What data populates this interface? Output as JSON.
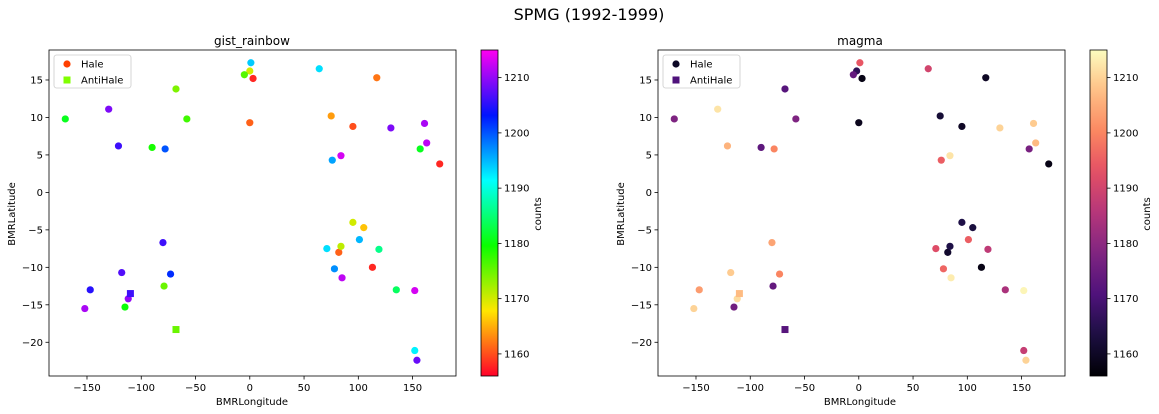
{
  "suptitle": "SPMG (1992-1999)",
  "chart_data": [
    {
      "type": "scatter",
      "title": "gist_rainbow",
      "colormap": "gist_rainbow",
      "xlabel": "BMRLongitude",
      "ylabel": "BMRLatitude",
      "xlim": [
        -185,
        190
      ],
      "ylim": [
        -24.5,
        19
      ],
      "xticks": [
        -150,
        -100,
        -50,
        0,
        50,
        100,
        150
      ],
      "yticks": [
        -20,
        -15,
        -10,
        -5,
        0,
        5,
        10,
        15
      ],
      "colorbar": {
        "label": "counts",
        "min": 1156,
        "max": 1215,
        "ticks": [
          1160,
          1170,
          1180,
          1190,
          1200,
          1210
        ]
      },
      "legend": {
        "position": "top-left",
        "entries": [
          {
            "label": "Hale",
            "marker": "circle",
            "color": "#ff4000"
          },
          {
            "label": "AntiHale",
            "marker": "square",
            "color": "#80ff00"
          }
        ]
      },
      "series": [
        {
          "name": "Hale",
          "marker": "circle",
          "points": [
            {
              "x": 175,
              "y": 3.8,
              "c": 1158
            },
            {
              "x": 3,
              "y": 15.2,
              "c": 1158
            },
            {
              "x": 113,
              "y": -10,
              "c": 1158
            },
            {
              "x": 0,
              "y": 9.3,
              "c": 1161
            },
            {
              "x": 95,
              "y": 8.8,
              "c": 1160
            },
            {
              "x": 117,
              "y": 15.3,
              "c": 1162
            },
            {
              "x": 75,
              "y": 10.2,
              "c": 1164
            },
            {
              "x": 82,
              "y": -8,
              "c": 1161
            },
            {
              "x": 105,
              "y": -4.7,
              "c": 1166
            },
            {
              "x": 95,
              "y": -4,
              "c": 1170
            },
            {
              "x": 84,
              "y": -7.2,
              "c": 1171
            },
            {
              "x": 0,
              "y": 16.2,
              "c": 1170
            },
            {
              "x": -5,
              "y": 15.7,
              "c": 1176
            },
            {
              "x": -68,
              "y": 13.8,
              "c": 1174
            },
            {
              "x": -58,
              "y": 9.8,
              "c": 1177
            },
            {
              "x": -90,
              "y": 6,
              "c": 1179
            },
            {
              "x": -170,
              "y": 9.8,
              "c": 1181
            },
            {
              "x": -79,
              "y": -12.5,
              "c": 1175
            },
            {
              "x": -115,
              "y": -15.3,
              "c": 1180
            },
            {
              "x": 157,
              "y": 5.8,
              "c": 1181
            },
            {
              "x": 135,
              "y": -13,
              "c": 1184
            },
            {
              "x": 119,
              "y": -7.6,
              "c": 1186
            },
            {
              "x": 152,
              "y": -21.1,
              "c": 1192
            },
            {
              "x": 64,
              "y": 16.5,
              "c": 1193
            },
            {
              "x": 71,
              "y": -7.5,
              "c": 1193
            },
            {
              "x": 1,
              "y": 17.3,
              "c": 1194
            },
            {
              "x": 101,
              "y": -6.3,
              "c": 1195
            },
            {
              "x": 76,
              "y": 4.3,
              "c": 1196
            },
            {
              "x": 78,
              "y": -10.2,
              "c": 1197
            },
            {
              "x": -78,
              "y": 5.8,
              "c": 1200
            },
            {
              "x": -73,
              "y": -10.9,
              "c": 1202
            },
            {
              "x": -147,
              "y": -13,
              "c": 1205
            },
            {
              "x": -80,
              "y": -6.7,
              "c": 1206
            },
            {
              "x": -121,
              "y": 6.2,
              "c": 1206
            },
            {
              "x": -118,
              "y": -10.7,
              "c": 1207
            },
            {
              "x": 154,
              "y": -22.4,
              "c": 1208
            },
            {
              "x": -130,
              "y": 11.1,
              "c": 1209
            },
            {
              "x": 130,
              "y": 8.6,
              "c": 1209
            },
            {
              "x": -112,
              "y": -14.2,
              "c": 1210
            },
            {
              "x": -152,
              "y": -15.5,
              "c": 1211
            },
            {
              "x": 161,
              "y": 9.2,
              "c": 1211
            },
            {
              "x": 163,
              "y": 6.6,
              "c": 1212
            },
            {
              "x": 85,
              "y": -11.4,
              "c": 1212
            },
            {
              "x": 152,
              "y": -13.1,
              "c": 1213
            },
            {
              "x": 84,
              "y": 4.9,
              "c": 1213
            }
          ]
        },
        {
          "name": "AntiHale",
          "marker": "square",
          "points": [
            {
              "x": -68,
              "y": -18.3,
              "c": 1175
            },
            {
              "x": -110,
              "y": -13.5,
              "c": 1206
            }
          ]
        }
      ]
    },
    {
      "type": "scatter",
      "title": "magma",
      "colormap": "magma",
      "xlabel": "BMRLongitude",
      "ylabel": "BMRLatitude",
      "xlim": [
        -185,
        190
      ],
      "ylim": [
        -24.5,
        19
      ],
      "xticks": [
        -150,
        -100,
        -50,
        0,
        50,
        100,
        150
      ],
      "yticks": [
        -20,
        -15,
        -10,
        -5,
        0,
        5,
        10,
        15
      ],
      "colorbar": {
        "label": "counts",
        "min": 1156,
        "max": 1215,
        "ticks": [
          1160,
          1170,
          1180,
          1190,
          1200,
          1210
        ]
      },
      "legend": {
        "position": "top-left",
        "entries": [
          {
            "label": "Hale",
            "marker": "circle",
            "color": "#0c0826"
          },
          {
            "label": "AntiHale",
            "marker": "square",
            "color": "#4f127b"
          }
        ]
      },
      "series": [
        {
          "name": "Hale",
          "marker": "circle",
          "points": [
            {
              "x": 175,
              "y": 3.8,
              "c": 1158
            },
            {
              "x": 3,
              "y": 15.2,
              "c": 1158
            },
            {
              "x": 113,
              "y": -10,
              "c": 1158
            },
            {
              "x": 0,
              "y": 9.3,
              "c": 1159
            },
            {
              "x": 95,
              "y": 8.8,
              "c": 1160
            },
            {
              "x": 117,
              "y": 15.3,
              "c": 1160
            },
            {
              "x": 75,
              "y": 10.2,
              "c": 1162
            },
            {
              "x": 82,
              "y": -8,
              "c": 1161
            },
            {
              "x": 105,
              "y": -4.7,
              "c": 1163
            },
            {
              "x": 95,
              "y": -4,
              "c": 1164
            },
            {
              "x": 84,
              "y": -7.2,
              "c": 1164
            },
            {
              "x": -2,
              "y": 16.2,
              "c": 1166
            },
            {
              "x": -5,
              "y": 15.7,
              "c": 1174
            },
            {
              "x": -68,
              "y": 13.8,
              "c": 1172
            },
            {
              "x": -58,
              "y": 9.8,
              "c": 1178
            },
            {
              "x": -90,
              "y": 6,
              "c": 1173
            },
            {
              "x": -170,
              "y": 9.8,
              "c": 1178
            },
            {
              "x": -79,
              "y": -12.5,
              "c": 1174
            },
            {
              "x": -115,
              "y": -15.3,
              "c": 1176
            },
            {
              "x": 157,
              "y": 5.8,
              "c": 1177
            },
            {
              "x": 135,
              "y": -13,
              "c": 1184
            },
            {
              "x": 119,
              "y": -7.6,
              "c": 1187
            },
            {
              "x": 152,
              "y": -21.1,
              "c": 1188
            },
            {
              "x": 64,
              "y": 16.5,
              "c": 1190
            },
            {
              "x": 71,
              "y": -7.5,
              "c": 1192
            },
            {
              "x": 1,
              "y": 17.3,
              "c": 1194
            },
            {
              "x": 101,
              "y": -6.3,
              "c": 1195
            },
            {
              "x": 76,
              "y": 4.3,
              "c": 1195
            },
            {
              "x": 78,
              "y": -10.2,
              "c": 1196
            },
            {
              "x": -78,
              "y": 5.8,
              "c": 1200
            },
            {
              "x": -73,
              "y": -10.9,
              "c": 1200
            },
            {
              "x": -147,
              "y": -13,
              "c": 1203
            },
            {
              "x": -80,
              "y": -6.7,
              "c": 1204
            },
            {
              "x": -121,
              "y": 6.2,
              "c": 1206
            },
            {
              "x": -118,
              "y": -10.7,
              "c": 1209
            },
            {
              "x": 154,
              "y": -22.4,
              "c": 1210
            },
            {
              "x": -130,
              "y": 11.1,
              "c": 1212
            },
            {
              "x": 130,
              "y": 8.6,
              "c": 1210
            },
            {
              "x": -112,
              "y": -14.2,
              "c": 1211
            },
            {
              "x": -152,
              "y": -15.5,
              "c": 1210
            },
            {
              "x": 161,
              "y": 9.2,
              "c": 1209
            },
            {
              "x": 163,
              "y": 6.6,
              "c": 1207
            },
            {
              "x": 85,
              "y": -11.4,
              "c": 1213
            },
            {
              "x": 152,
              "y": -13.1,
              "c": 1214
            },
            {
              "x": 84,
              "y": 4.9,
              "c": 1212
            }
          ]
        },
        {
          "name": "AntiHale",
          "marker": "square",
          "points": [
            {
              "x": -68,
              "y": -18.3,
              "c": 1172
            },
            {
              "x": -110,
              "y": -13.5,
              "c": 1207
            }
          ]
        }
      ]
    }
  ]
}
